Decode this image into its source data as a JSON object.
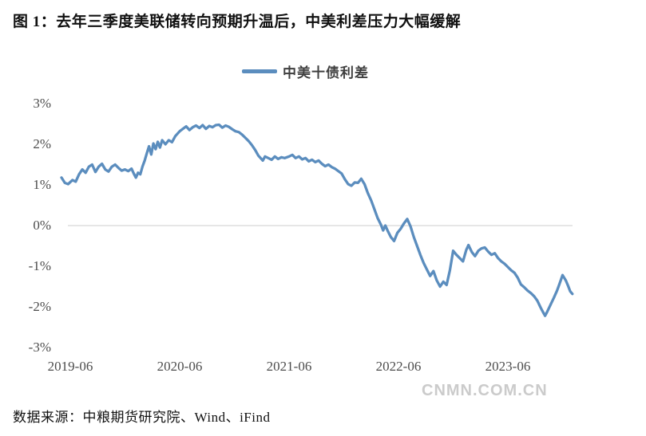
{
  "title": "图 1：去年三季度美联储转向预期升温后，中美利差压力大幅缓解",
  "legend": {
    "label": "中美十债利差"
  },
  "source": "数据来源：中粮期货研究院、Wind、iFind",
  "watermark": "CNMN.COM.CN",
  "colors": {
    "line": "#5B8DBE",
    "grid": "#D6D6D6",
    "axis_text": "#4D4D4D",
    "legend_text": "#3F3F3F",
    "title_text": "#111111",
    "watermark": "#CBCBCB"
  },
  "chart_data": {
    "type": "line",
    "title": "中美十债利差",
    "xlabel": "",
    "ylabel": "",
    "x_unit": "years since 2019-06",
    "xlim": [
      -0.12,
      4.65
    ],
    "ylim": [
      -3,
      3
    ],
    "grid": "zero-line-only",
    "legend_position": "top-center",
    "x_ticks": [
      {
        "pos": 0,
        "label": "2019-06"
      },
      {
        "pos": 1,
        "label": "2020-06"
      },
      {
        "pos": 2,
        "label": "2021-06"
      },
      {
        "pos": 3,
        "label": "2022-06"
      },
      {
        "pos": 4,
        "label": "2023-06"
      }
    ],
    "y_ticks": [
      {
        "value": 3,
        "label": "3%"
      },
      {
        "value": 2,
        "label": "2%"
      },
      {
        "value": 1,
        "label": "1%"
      },
      {
        "value": 0,
        "label": "0%"
      },
      {
        "value": -1,
        "label": "-1%"
      },
      {
        "value": -2,
        "label": "-2%"
      },
      {
        "value": -3,
        "label": "-3%"
      }
    ],
    "series": [
      {
        "name": "中美十债利差",
        "color": "#5B8DBE",
        "points": [
          [
            -0.08,
            1.18
          ],
          [
            -0.05,
            1.05
          ],
          [
            -0.02,
            1.02
          ],
          [
            0.02,
            1.12
          ],
          [
            0.05,
            1.08
          ],
          [
            0.08,
            1.26
          ],
          [
            0.11,
            1.38
          ],
          [
            0.14,
            1.3
          ],
          [
            0.17,
            1.45
          ],
          [
            0.2,
            1.5
          ],
          [
            0.23,
            1.32
          ],
          [
            0.26,
            1.45
          ],
          [
            0.29,
            1.52
          ],
          [
            0.32,
            1.38
          ],
          [
            0.35,
            1.33
          ],
          [
            0.38,
            1.45
          ],
          [
            0.41,
            1.5
          ],
          [
            0.44,
            1.42
          ],
          [
            0.47,
            1.35
          ],
          [
            0.5,
            1.38
          ],
          [
            0.53,
            1.34
          ],
          [
            0.56,
            1.4
          ],
          [
            0.58,
            1.28
          ],
          [
            0.6,
            1.18
          ],
          [
            0.62,
            1.3
          ],
          [
            0.64,
            1.26
          ],
          [
            0.66,
            1.45
          ],
          [
            0.68,
            1.6
          ],
          [
            0.7,
            1.78
          ],
          [
            0.72,
            1.95
          ],
          [
            0.74,
            1.75
          ],
          [
            0.76,
            2.02
          ],
          [
            0.78,
            1.88
          ],
          [
            0.8,
            2.06
          ],
          [
            0.82,
            1.92
          ],
          [
            0.84,
            2.1
          ],
          [
            0.87,
            2.0
          ],
          [
            0.9,
            2.1
          ],
          [
            0.93,
            2.05
          ],
          [
            0.96,
            2.2
          ],
          [
            1.0,
            2.32
          ],
          [
            1.03,
            2.38
          ],
          [
            1.06,
            2.44
          ],
          [
            1.09,
            2.35
          ],
          [
            1.12,
            2.42
          ],
          [
            1.15,
            2.46
          ],
          [
            1.18,
            2.4
          ],
          [
            1.21,
            2.47
          ],
          [
            1.24,
            2.38
          ],
          [
            1.27,
            2.45
          ],
          [
            1.3,
            2.42
          ],
          [
            1.33,
            2.47
          ],
          [
            1.36,
            2.48
          ],
          [
            1.39,
            2.41
          ],
          [
            1.42,
            2.46
          ],
          [
            1.45,
            2.43
          ],
          [
            1.48,
            2.37
          ],
          [
            1.51,
            2.32
          ],
          [
            1.54,
            2.3
          ],
          [
            1.57,
            2.24
          ],
          [
            1.6,
            2.16
          ],
          [
            1.63,
            2.08
          ],
          [
            1.66,
            1.98
          ],
          [
            1.69,
            1.86
          ],
          [
            1.72,
            1.72
          ],
          [
            1.76,
            1.6
          ],
          [
            1.78,
            1.7
          ],
          [
            1.81,
            1.66
          ],
          [
            1.84,
            1.62
          ],
          [
            1.87,
            1.7
          ],
          [
            1.9,
            1.64
          ],
          [
            1.93,
            1.68
          ],
          [
            1.96,
            1.66
          ],
          [
            2.0,
            1.7
          ],
          [
            2.03,
            1.74
          ],
          [
            2.06,
            1.66
          ],
          [
            2.09,
            1.7
          ],
          [
            2.12,
            1.63
          ],
          [
            2.15,
            1.66
          ],
          [
            2.18,
            1.58
          ],
          [
            2.21,
            1.62
          ],
          [
            2.24,
            1.56
          ],
          [
            2.27,
            1.6
          ],
          [
            2.3,
            1.52
          ],
          [
            2.33,
            1.46
          ],
          [
            2.36,
            1.5
          ],
          [
            2.39,
            1.44
          ],
          [
            2.42,
            1.4
          ],
          [
            2.45,
            1.34
          ],
          [
            2.48,
            1.28
          ],
          [
            2.51,
            1.14
          ],
          [
            2.54,
            1.02
          ],
          [
            2.57,
            0.98
          ],
          [
            2.6,
            1.06
          ],
          [
            2.63,
            1.05
          ],
          [
            2.66,
            1.15
          ],
          [
            2.69,
            1.02
          ],
          [
            2.72,
            0.8
          ],
          [
            2.75,
            0.62
          ],
          [
            2.78,
            0.4
          ],
          [
            2.81,
            0.18
          ],
          [
            2.84,
            0.02
          ],
          [
            2.86,
            -0.12
          ],
          [
            2.88,
            0.0
          ],
          [
            2.9,
            -0.12
          ],
          [
            2.93,
            -0.28
          ],
          [
            2.96,
            -0.38
          ],
          [
            2.99,
            -0.18
          ],
          [
            3.02,
            -0.08
          ],
          [
            3.05,
            0.05
          ],
          [
            3.08,
            0.16
          ],
          [
            3.11,
            -0.02
          ],
          [
            3.14,
            -0.28
          ],
          [
            3.17,
            -0.5
          ],
          [
            3.2,
            -0.72
          ],
          [
            3.23,
            -0.92
          ],
          [
            3.26,
            -1.08
          ],
          [
            3.29,
            -1.24
          ],
          [
            3.32,
            -1.12
          ],
          [
            3.35,
            -1.35
          ],
          [
            3.38,
            -1.5
          ],
          [
            3.41,
            -1.38
          ],
          [
            3.44,
            -1.46
          ],
          [
            3.47,
            -1.1
          ],
          [
            3.5,
            -0.62
          ],
          [
            3.53,
            -0.72
          ],
          [
            3.56,
            -0.8
          ],
          [
            3.59,
            -0.88
          ],
          [
            3.62,
            -0.6
          ],
          [
            3.64,
            -0.48
          ],
          [
            3.67,
            -0.65
          ],
          [
            3.7,
            -0.75
          ],
          [
            3.73,
            -0.62
          ],
          [
            3.76,
            -0.56
          ],
          [
            3.79,
            -0.54
          ],
          [
            3.82,
            -0.64
          ],
          [
            3.85,
            -0.72
          ],
          [
            3.88,
            -0.68
          ],
          [
            3.91,
            -0.8
          ],
          [
            3.94,
            -0.88
          ],
          [
            3.97,
            -0.94
          ],
          [
            4.0,
            -1.02
          ],
          [
            4.03,
            -1.1
          ],
          [
            4.06,
            -1.16
          ],
          [
            4.09,
            -1.28
          ],
          [
            4.12,
            -1.45
          ],
          [
            4.15,
            -1.52
          ],
          [
            4.18,
            -1.6
          ],
          [
            4.21,
            -1.66
          ],
          [
            4.24,
            -1.74
          ],
          [
            4.27,
            -1.85
          ],
          [
            4.3,
            -2.02
          ],
          [
            4.32,
            -2.12
          ],
          [
            4.34,
            -2.22
          ],
          [
            4.36,
            -2.12
          ],
          [
            4.39,
            -1.95
          ],
          [
            4.42,
            -1.78
          ],
          [
            4.45,
            -1.6
          ],
          [
            4.47,
            -1.45
          ],
          [
            4.5,
            -1.22
          ],
          [
            4.53,
            -1.35
          ],
          [
            4.55,
            -1.48
          ],
          [
            4.57,
            -1.62
          ],
          [
            4.59,
            -1.68
          ]
        ]
      }
    ]
  }
}
